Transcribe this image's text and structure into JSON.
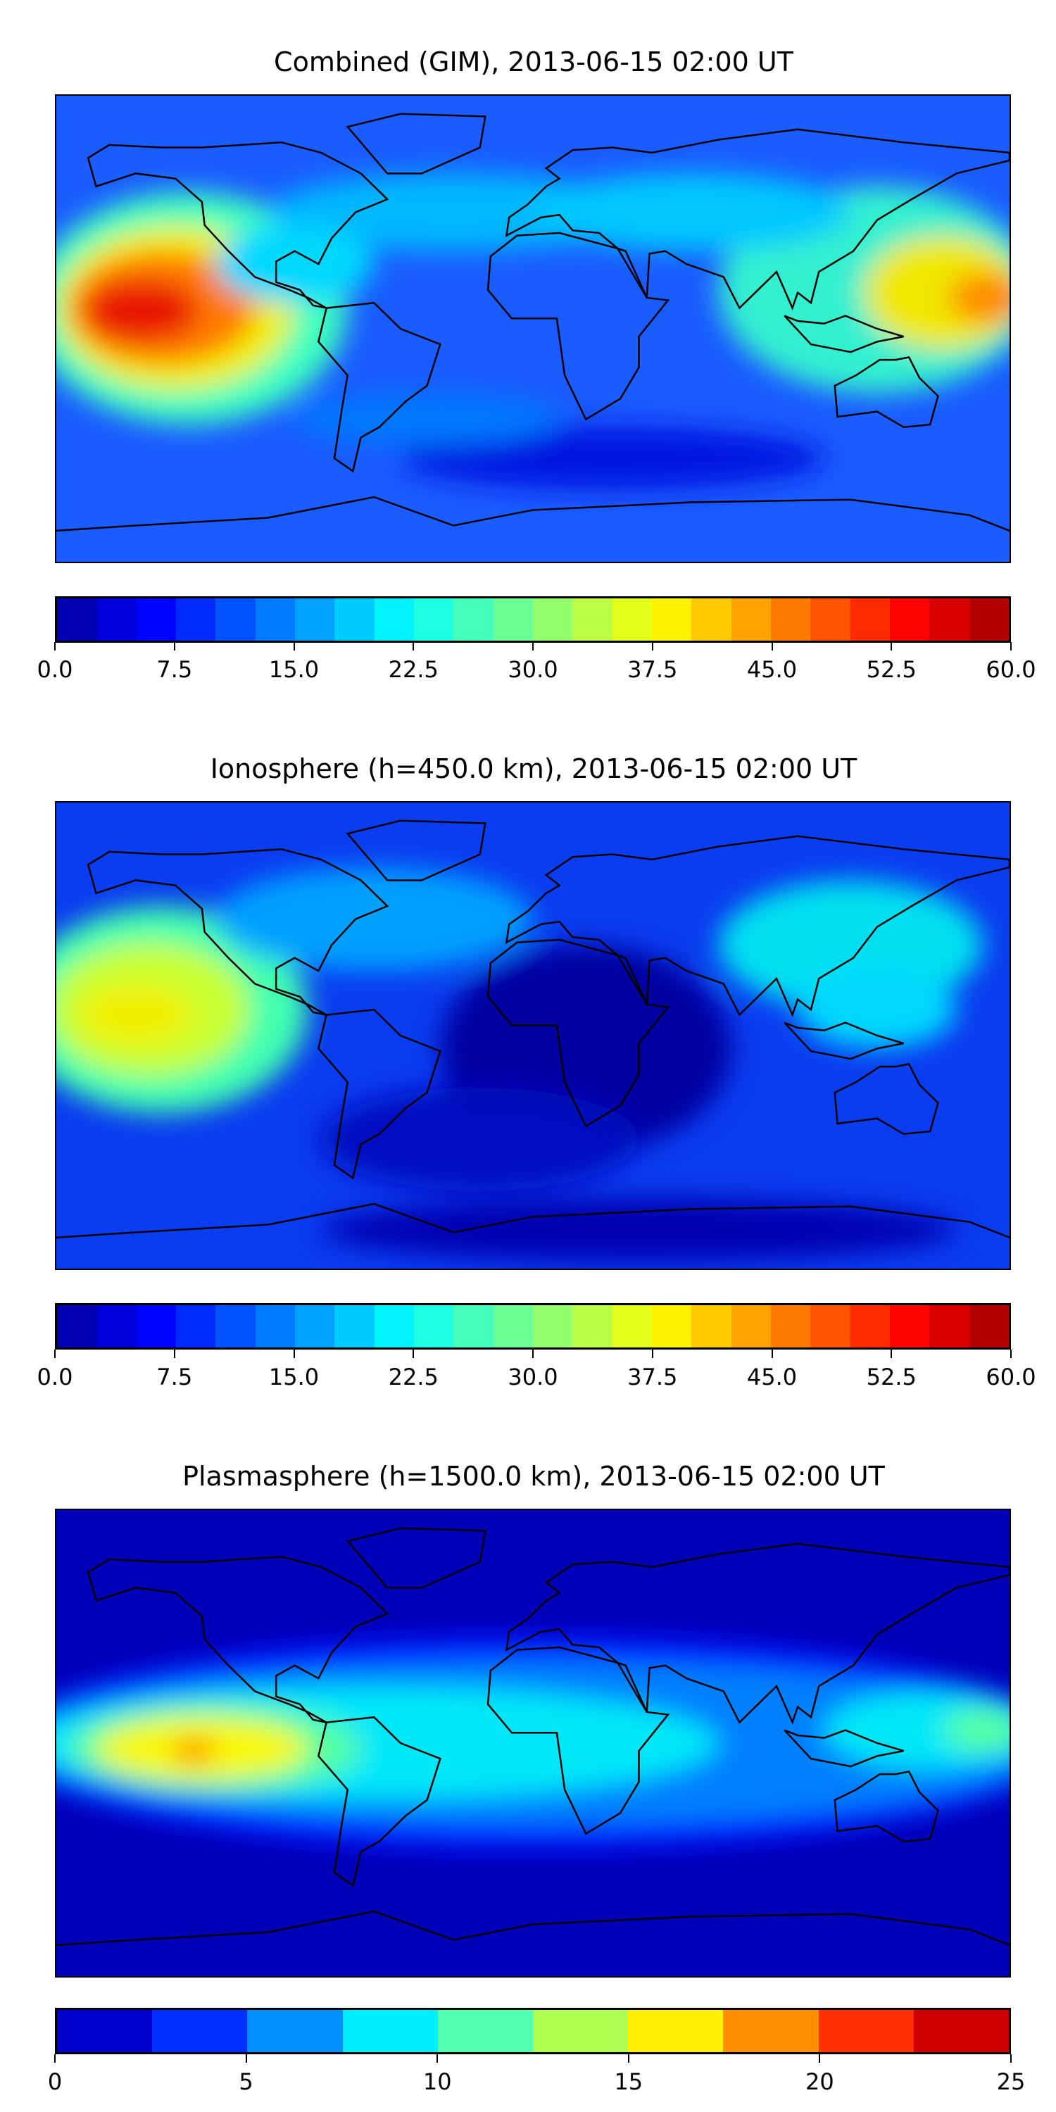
{
  "panels": [
    {
      "title": "Combined (GIM), 2013-06-15 02:00 UT",
      "background": "#1a5cff",
      "blobs": [
        {
          "lon": -130,
          "lat": 8,
          "rx": 60,
          "ry": 45,
          "color": "#3cffc0"
        },
        {
          "lon": -135,
          "lat": 8,
          "rx": 45,
          "ry": 32,
          "color": "#f0f000"
        },
        {
          "lon": -140,
          "lat": 8,
          "rx": 35,
          "ry": 22,
          "color": "#ff7a00"
        },
        {
          "lon": -148,
          "lat": 7,
          "rx": 22,
          "ry": 12,
          "color": "#e81400"
        },
        {
          "lon": 130,
          "lat": 15,
          "rx": 60,
          "ry": 40,
          "color": "#30f0d0"
        },
        {
          "lon": 155,
          "lat": 14,
          "rx": 30,
          "ry": 22,
          "color": "#f0e800"
        },
        {
          "lon": 172,
          "lat": 12,
          "rx": 15,
          "ry": 10,
          "color": "#ff8c00"
        },
        {
          "lon": -30,
          "lat": 45,
          "rx": 70,
          "ry": 15,
          "color": "#00b8ff"
        },
        {
          "lon": 60,
          "lat": 45,
          "rx": 60,
          "ry": 15,
          "color": "#00c8ff"
        },
        {
          "lon": -90,
          "lat": 25,
          "rx": 30,
          "ry": 15,
          "color": "#00d8ff"
        },
        {
          "lon": 30,
          "lat": -50,
          "rx": 80,
          "ry": 12,
          "color": "#0018e0"
        },
        {
          "lon": -40,
          "lat": -35,
          "rx": 50,
          "ry": 10,
          "color": "#0078ff"
        }
      ],
      "colorbar": {
        "ticks": [
          "0.0",
          "7.5",
          "15.0",
          "22.5",
          "30.0",
          "37.5",
          "45.0",
          "52.5",
          "60.0"
        ],
        "min": 0,
        "max": 60,
        "levels": 24
      }
    },
    {
      "title": "Ionosphere  (h=450.0 km), 2013-06-15 02:00 UT",
      "background": "#0a3cf0",
      "blobs": [
        {
          "lon": -140,
          "lat": 10,
          "rx": 55,
          "ry": 40,
          "color": "#40ffb0"
        },
        {
          "lon": -145,
          "lat": 10,
          "rx": 38,
          "ry": 26,
          "color": "#c8ff30"
        },
        {
          "lon": -150,
          "lat": 8,
          "rx": 22,
          "ry": 12,
          "color": "#f0f000"
        },
        {
          "lon": 120,
          "lat": 35,
          "rx": 50,
          "ry": 25,
          "color": "#00e0f0"
        },
        {
          "lon": 130,
          "lat": 10,
          "rx": 30,
          "ry": 15,
          "color": "#00d8ff"
        },
        {
          "lon": -60,
          "lat": 45,
          "rx": 60,
          "ry": 20,
          "color": "#00a0ff"
        },
        {
          "lon": 20,
          "lat": -5,
          "rx": 55,
          "ry": 40,
          "color": "#0000a0"
        },
        {
          "lon": -20,
          "lat": -40,
          "rx": 60,
          "ry": 20,
          "color": "#0008c0"
        },
        {
          "lon": 40,
          "lat": -75,
          "rx": 120,
          "ry": 12,
          "color": "#0000b0"
        }
      ],
      "colorbar": {
        "ticks": [
          "0.0",
          "7.5",
          "15.0",
          "22.5",
          "30.0",
          "37.5",
          "45.0",
          "52.5",
          "60.0"
        ],
        "min": 0,
        "max": 60,
        "levels": 24
      }
    },
    {
      "title": "Plasmasphere (h=1500.0 km), 2013-06-15 02:00 UT",
      "background": "#0000b8",
      "blobs": [
        {
          "lon": 0,
          "lat": 0,
          "rx": 200,
          "ry": 42,
          "color": "#0018ff"
        },
        {
          "lon": 0,
          "lat": 0,
          "rx": 200,
          "ry": 32,
          "color": "#0080ff"
        },
        {
          "lon": -60,
          "lat": 0,
          "rx": 130,
          "ry": 22,
          "color": "#00e8f8"
        },
        {
          "lon": 150,
          "lat": 5,
          "rx": 40,
          "ry": 15,
          "color": "#00e8f8"
        },
        {
          "lon": -120,
          "lat": -2,
          "rx": 55,
          "ry": 17,
          "color": "#55ffa0"
        },
        {
          "lon": -125,
          "lat": -2,
          "rx": 40,
          "ry": 12,
          "color": "#f8f800"
        },
        {
          "lon": -128,
          "lat": -3,
          "rx": 8,
          "ry": 5,
          "color": "#ff9000"
        },
        {
          "lon": 170,
          "lat": 5,
          "rx": 15,
          "ry": 8,
          "color": "#55ffa0"
        }
      ],
      "colorbar": {
        "ticks": [
          "0",
          "5",
          "10",
          "15",
          "20",
          "25"
        ],
        "min": 0,
        "max": 25,
        "levels": 10
      }
    }
  ],
  "chart_data": [
    {
      "type": "heatmap",
      "title": "Combined (GIM), 2013-06-15 02:00 UT",
      "colorbar_range": [
        0,
        60
      ],
      "colorbar_ticks": [
        0,
        7.5,
        15,
        22.5,
        30,
        37.5,
        45,
        52.5,
        60
      ],
      "levels": 24
    },
    {
      "type": "heatmap",
      "title": "Ionosphere  (h=450.0 km), 2013-06-15 02:00 UT",
      "colorbar_range": [
        0,
        60
      ],
      "colorbar_ticks": [
        0,
        7.5,
        15,
        22.5,
        30,
        37.5,
        45,
        52.5,
        60
      ],
      "levels": 24
    },
    {
      "type": "heatmap",
      "title": "Plasmasphere (h=1500.0 km), 2013-06-15 02:00 UT",
      "colorbar_range": [
        0,
        25
      ],
      "colorbar_ticks": [
        0,
        5,
        10,
        15,
        20,
        25
      ],
      "levels": 10
    }
  ]
}
